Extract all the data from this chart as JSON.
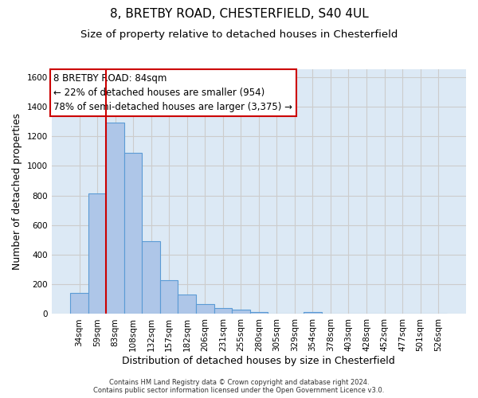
{
  "title1": "8, BRETBY ROAD, CHESTERFIELD, S40 4UL",
  "title2": "Size of property relative to detached houses in Chesterfield",
  "xlabel": "Distribution of detached houses by size in Chesterfield",
  "ylabel": "Number of detached properties",
  "footnote": "Contains HM Land Registry data © Crown copyright and database right 2024.\nContains public sector information licensed under the Open Government Licence v3.0.",
  "bar_labels": [
    "34sqm",
    "59sqm",
    "83sqm",
    "108sqm",
    "132sqm",
    "157sqm",
    "182sqm",
    "206sqm",
    "231sqm",
    "255sqm",
    "280sqm",
    "305sqm",
    "329sqm",
    "354sqm",
    "378sqm",
    "403sqm",
    "428sqm",
    "452sqm",
    "477sqm",
    "501sqm",
    "526sqm"
  ],
  "bar_values": [
    140,
    815,
    1295,
    1090,
    493,
    230,
    130,
    68,
    40,
    27,
    15,
    0,
    0,
    15,
    0,
    0,
    0,
    0,
    0,
    0,
    0
  ],
  "bar_color": "#aec6e8",
  "bar_edge_color": "#5b9bd5",
  "vline_color": "#cc0000",
  "annotation_text": "8 BRETBY ROAD: 84sqm\n← 22% of detached houses are smaller (954)\n78% of semi-detached houses are larger (3,375) →",
  "annotation_box_color": "#ffffff",
  "annotation_box_edge_color": "#cc0000",
  "ylim": [
    0,
    1650
  ],
  "yticks": [
    0,
    200,
    400,
    600,
    800,
    1000,
    1200,
    1400,
    1600
  ],
  "grid_color": "#cccccc",
  "bg_color": "#dce9f5",
  "title1_fontsize": 11,
  "title2_fontsize": 9.5,
  "annotation_fontsize": 8.5,
  "tick_fontsize": 7.5,
  "ylabel_fontsize": 9,
  "xlabel_fontsize": 9,
  "footnote_fontsize": 6
}
